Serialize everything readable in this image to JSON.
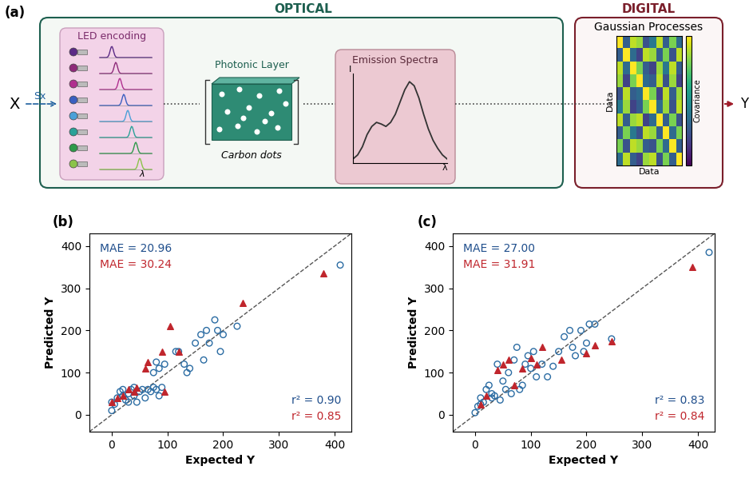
{
  "diagram": {
    "panel_label": "(a)",
    "input": "X",
    "encoding": "Sx",
    "output": "Y",
    "optical": {
      "title": "OPTICAL",
      "led_label": "LED encoding",
      "led_axis": "λ",
      "layer_label": "Photonic Layer",
      "dots_label": "Carbon dots",
      "spectra_label": "Emission Spectra",
      "spectra_x": "λ",
      "spectra_y": "I",
      "spectrum": {
        "x": [
          0,
          0.5,
          1,
          1.5,
          2,
          2.5,
          3,
          3.5,
          4,
          4.5,
          5,
          5.5,
          6,
          6.5,
          7,
          7.5,
          8,
          8.5,
          9,
          9.5,
          10
        ],
        "y": [
          0.05,
          0.1,
          0.2,
          0.35,
          0.45,
          0.5,
          0.48,
          0.45,
          0.5,
          0.6,
          0.75,
          0.9,
          1.0,
          0.95,
          0.8,
          0.6,
          0.42,
          0.28,
          0.18,
          0.1,
          0.05
        ]
      }
    },
    "digital": {
      "title": "DIGITAL",
      "label": "Gaussian Processes",
      "x_label": "Data",
      "y_label": "Data",
      "colorbar_label": "Covariance",
      "cells_range": [
        0,
        1
      ],
      "cells": [
        [
          1.0,
          0.3,
          0.9,
          0.85,
          0.25,
          0.4,
          0.9,
          0.3,
          0.8,
          0.35
        ],
        [
          0.3,
          1.0,
          0.35,
          0.2,
          0.9,
          0.85,
          0.3,
          0.8,
          0.25,
          0.9
        ],
        [
          0.9,
          0.35,
          1.0,
          0.8,
          0.3,
          0.2,
          0.85,
          0.4,
          0.9,
          0.3
        ],
        [
          0.85,
          0.2,
          0.8,
          1.0,
          0.35,
          0.3,
          0.9,
          0.25,
          0.85,
          0.2
        ],
        [
          0.25,
          0.9,
          0.3,
          0.35,
          1.0,
          0.8,
          0.2,
          0.9,
          0.3,
          0.85
        ],
        [
          0.4,
          0.85,
          0.2,
          0.3,
          0.8,
          1.0,
          0.35,
          0.85,
          0.25,
          0.9
        ],
        [
          0.9,
          0.3,
          0.85,
          0.9,
          0.2,
          0.35,
          1.0,
          0.3,
          0.8,
          0.25
        ],
        [
          0.3,
          0.8,
          0.4,
          0.25,
          0.9,
          0.85,
          0.3,
          1.0,
          0.35,
          0.8
        ],
        [
          0.8,
          0.25,
          0.9,
          0.85,
          0.3,
          0.25,
          0.8,
          0.35,
          1.0,
          0.3
        ],
        [
          0.35,
          0.9,
          0.3,
          0.2,
          0.85,
          0.9,
          0.25,
          0.8,
          0.3,
          1.0
        ]
      ]
    }
  },
  "chart_data": [
    {
      "type": "scatter",
      "title": "(b)",
      "x_label": "Expected Y",
      "y_label": "Predicted Y",
      "xlim": [
        -40,
        430
      ],
      "ylim": [
        -40,
        430
      ],
      "xticks": [
        0,
        100,
        200,
        300,
        400
      ],
      "yticks": [
        0,
        100,
        200,
        300,
        400
      ],
      "grid": false,
      "annotations": [
        {
          "text": "MAE = 20.96",
          "color": "#1f4e8c"
        },
        {
          "text": "MAE = 30.24",
          "color": "#c0262d"
        },
        {
          "text": "r² = 0.90",
          "color": "#1f4e8c"
        },
        {
          "text": "r² = 0.85",
          "color": "#c0262d"
        }
      ],
      "series": [
        {
          "color": "#2b6ca3",
          "marker": "circle",
          "x": [
            0,
            5,
            10,
            15,
            20,
            25,
            30,
            35,
            40,
            45,
            50,
            55,
            60,
            65,
            70,
            75,
            80,
            85,
            90,
            20,
            30,
            40,
            0,
            75,
            80,
            85,
            95,
            115,
            120,
            130,
            135,
            140,
            150,
            160,
            165,
            170,
            175,
            185,
            190,
            195,
            200,
            225,
            410
          ],
          "values": [
            10,
            25,
            40,
            55,
            60,
            35,
            50,
            60,
            45,
            30,
            55,
            60,
            40,
            60,
            55,
            65,
            60,
            45,
            65,
            45,
            30,
            65,
            30,
            100,
            125,
            110,
            120,
            150,
            150,
            120,
            100,
            110,
            170,
            190,
            130,
            200,
            170,
            225,
            200,
            150,
            190,
            210,
            355
          ]
        },
        {
          "color": "#c0262d",
          "marker": "triangle",
          "x": [
            0,
            10,
            20,
            30,
            40,
            45,
            60,
            65,
            90,
            95,
            105,
            120,
            235,
            380
          ],
          "values": [
            30,
            40,
            45,
            60,
            55,
            65,
            110,
            125,
            150,
            55,
            210,
            150,
            265,
            335
          ]
        }
      ]
    },
    {
      "type": "scatter",
      "title": "(c)",
      "x_label": "Expected Y",
      "y_label": "Predicted Y",
      "xlim": [
        -40,
        430
      ],
      "ylim": [
        -40,
        430
      ],
      "xticks": [
        0,
        100,
        200,
        300,
        400
      ],
      "yticks": [
        0,
        100,
        200,
        300,
        400
      ],
      "grid": false,
      "annotations": [
        {
          "text": "MAE = 27.00",
          "color": "#1f4e8c"
        },
        {
          "text": "MAE = 31.91",
          "color": "#c0262d"
        },
        {
          "text": "r² = 0.83",
          "color": "#1f4e8c"
        },
        {
          "text": "r² = 0.84",
          "color": "#c0262d"
        }
      ],
      "series": [
        {
          "color": "#2b6ca3",
          "marker": "circle",
          "x": [
            0,
            5,
            10,
            15,
            20,
            25,
            30,
            35,
            40,
            45,
            50,
            55,
            60,
            65,
            70,
            75,
            80,
            85,
            90,
            95,
            100,
            105,
            110,
            120,
            130,
            140,
            150,
            160,
            170,
            175,
            180,
            190,
            195,
            200,
            205,
            215,
            245,
            420,
            10,
            30
          ],
          "values": [
            5,
            20,
            40,
            30,
            60,
            70,
            50,
            45,
            120,
            35,
            80,
            60,
            100,
            50,
            130,
            160,
            60,
            70,
            120,
            140,
            110,
            150,
            90,
            120,
            90,
            115,
            150,
            185,
            200,
            160,
            140,
            200,
            150,
            170,
            215,
            215,
            180,
            385,
            25,
            40
          ]
        },
        {
          "color": "#c0262d",
          "marker": "triangle",
          "x": [
            10,
            20,
            40,
            50,
            60,
            70,
            85,
            100,
            110,
            120,
            155,
            200,
            215,
            245,
            390
          ],
          "values": [
            25,
            45,
            105,
            120,
            130,
            70,
            110,
            135,
            120,
            160,
            130,
            145,
            165,
            175,
            350
          ]
        }
      ]
    }
  ]
}
